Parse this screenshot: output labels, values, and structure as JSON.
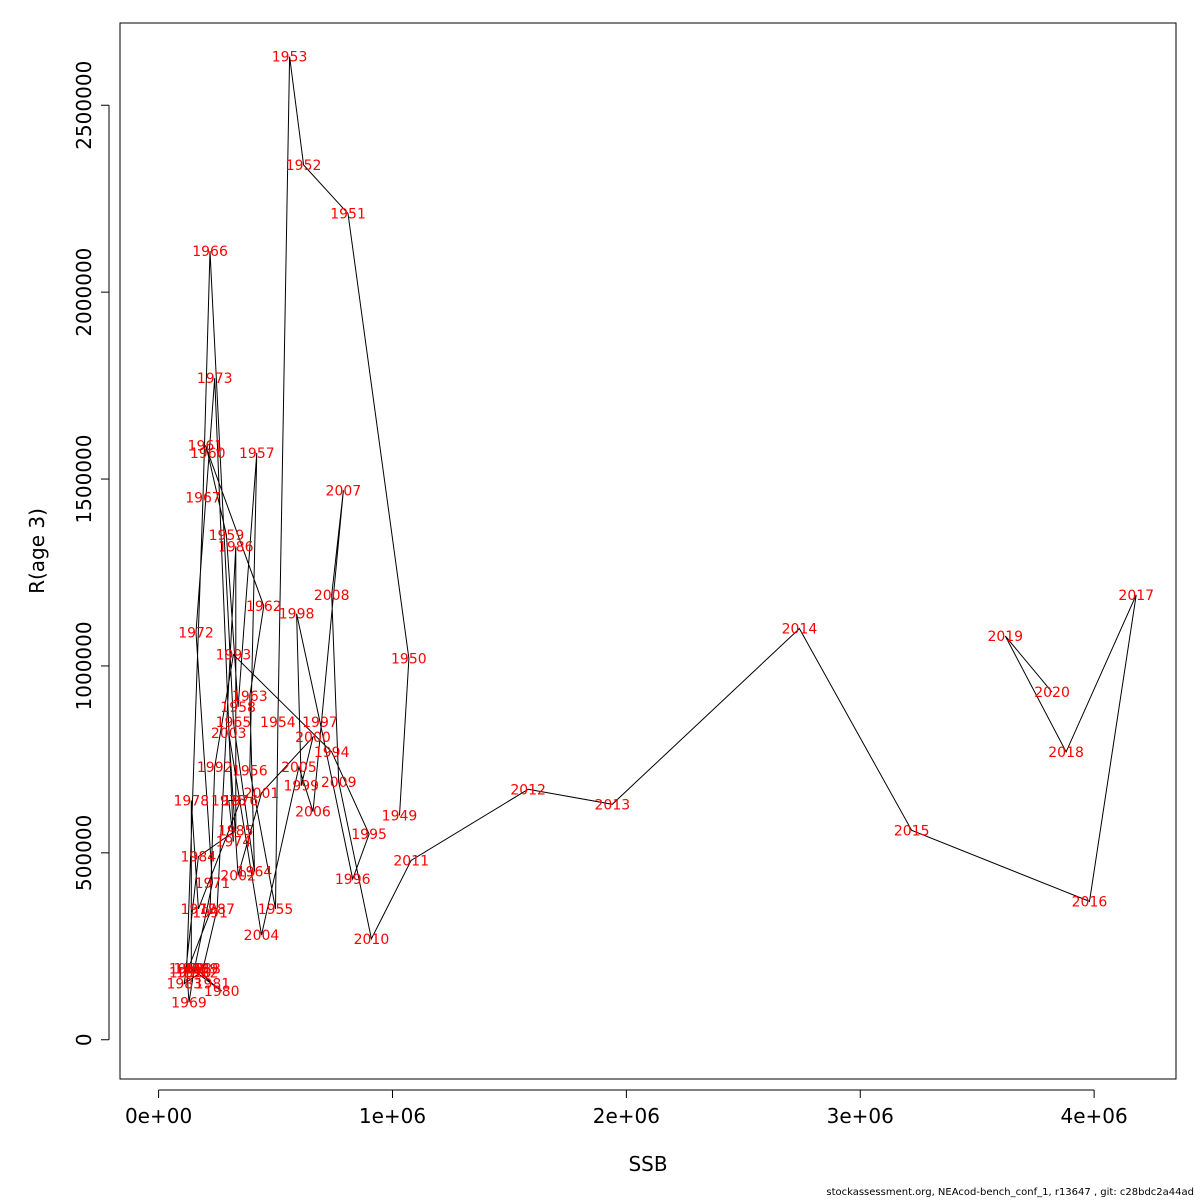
{
  "footer": "stockassessment.org, NEAcod-bench_conf_1, r13647 , git: c28bdc2a44ad",
  "chart_data": {
    "type": "line",
    "xlabel": "SSB",
    "ylabel": "R(age 3)",
    "xlim": [
      -165000,
      4350000
    ],
    "ylim": [
      -105000,
      2720000
    ],
    "x_ticks": [
      0,
      1000000,
      2000000,
      3000000,
      4000000
    ],
    "x_tick_labels": [
      "0e+00",
      "1e+06",
      "2e+06",
      "3e+06",
      "4e+06"
    ],
    "y_ticks": [
      0,
      500000,
      1000000,
      1500000,
      2000000,
      2500000
    ],
    "y_tick_labels": [
      "0",
      "500000",
      "1000000",
      "1500000",
      "2000000",
      "2500000"
    ],
    "grid": false,
    "line_color": "#000000",
    "label_color": "#ff0000",
    "points": [
      {
        "year": "1949",
        "x": 1030000,
        "y": 600000
      },
      {
        "year": "1950",
        "x": 1070000,
        "y": 1020000
      },
      {
        "year": "1951",
        "x": 810000,
        "y": 2210000
      },
      {
        "year": "1952",
        "x": 620000,
        "y": 2340000
      },
      {
        "year": "1953",
        "x": 560000,
        "y": 2630000
      },
      {
        "year": "1954",
        "x": 510000,
        "y": 850000
      },
      {
        "year": "1955",
        "x": 500000,
        "y": 350000
      },
      {
        "year": "1956",
        "x": 390000,
        "y": 720000
      },
      {
        "year": "1957",
        "x": 420000,
        "y": 1570000
      },
      {
        "year": "1958",
        "x": 340000,
        "y": 890000
      },
      {
        "year": "1959",
        "x": 290000,
        "y": 1350000
      },
      {
        "year": "1960",
        "x": 210000,
        "y": 1570000
      },
      {
        "year": "1961",
        "x": 200000,
        "y": 1590000
      },
      {
        "year": "1962",
        "x": 450000,
        "y": 1160000
      },
      {
        "year": "1963",
        "x": 390000,
        "y": 920000
      },
      {
        "year": "1964",
        "x": 410000,
        "y": 450000
      },
      {
        "year": "1965",
        "x": 320000,
        "y": 850000
      },
      {
        "year": "1966",
        "x": 220000,
        "y": 2110000
      },
      {
        "year": "1967",
        "x": 190000,
        "y": 1450000
      },
      {
        "year": "1968",
        "x": 120000,
        "y": 190000
      },
      {
        "year": "1969",
        "x": 130000,
        "y": 100000
      },
      {
        "year": "1970",
        "x": 150000,
        "y": 180000
      },
      {
        "year": "1971",
        "x": 230000,
        "y": 420000
      },
      {
        "year": "1972",
        "x": 160000,
        "y": 1090000
      },
      {
        "year": "1973",
        "x": 240000,
        "y": 1770000
      },
      {
        "year": "1974",
        "x": 320000,
        "y": 530000
      },
      {
        "year": "1975",
        "x": 300000,
        "y": 640000
      },
      {
        "year": "1976",
        "x": 350000,
        "y": 640000
      },
      {
        "year": "1977",
        "x": 170000,
        "y": 350000
      },
      {
        "year": "1978",
        "x": 140000,
        "y": 640000
      },
      {
        "year": "1979",
        "x": 140000,
        "y": 190000
      },
      {
        "year": "1980",
        "x": 270000,
        "y": 130000
      },
      {
        "year": "1981",
        "x": 230000,
        "y": 150000
      },
      {
        "year": "1982",
        "x": 180000,
        "y": 180000
      },
      {
        "year": "1983",
        "x": 110000,
        "y": 150000
      },
      {
        "year": "1984",
        "x": 170000,
        "y": 490000
      },
      {
        "year": "1985",
        "x": 330000,
        "y": 560000
      },
      {
        "year": "1986",
        "x": 330000,
        "y": 1320000
      },
      {
        "year": "1987",
        "x": 250000,
        "y": 350000
      },
      {
        "year": "1988",
        "x": 190000,
        "y": 190000
      },
      {
        "year": "1989",
        "x": 180000,
        "y": 190000
      },
      {
        "year": "1990",
        "x": 120000,
        "y": 180000
      },
      {
        "year": "1991",
        "x": 220000,
        "y": 340000
      },
      {
        "year": "1992",
        "x": 240000,
        "y": 730000
      },
      {
        "year": "1993",
        "x": 320000,
        "y": 1030000
      },
      {
        "year": "1994",
        "x": 740000,
        "y": 770000
      },
      {
        "year": "1995",
        "x": 900000,
        "y": 550000
      },
      {
        "year": "1996",
        "x": 830000,
        "y": 430000
      },
      {
        "year": "1997",
        "x": 690000,
        "y": 850000
      },
      {
        "year": "1998",
        "x": 590000,
        "y": 1140000
      },
      {
        "year": "1999",
        "x": 610000,
        "y": 680000
      },
      {
        "year": "2000",
        "x": 660000,
        "y": 810000
      },
      {
        "year": "2001",
        "x": 440000,
        "y": 660000
      },
      {
        "year": "2002",
        "x": 340000,
        "y": 440000
      },
      {
        "year": "2003",
        "x": 300000,
        "y": 820000
      },
      {
        "year": "2004",
        "x": 440000,
        "y": 280000
      },
      {
        "year": "2005",
        "x": 600000,
        "y": 730000
      },
      {
        "year": "2006",
        "x": 660000,
        "y": 610000
      },
      {
        "year": "2007",
        "x": 790000,
        "y": 1470000
      },
      {
        "year": "2008",
        "x": 740000,
        "y": 1190000
      },
      {
        "year": "2009",
        "x": 770000,
        "y": 690000
      },
      {
        "year": "2010",
        "x": 910000,
        "y": 270000
      },
      {
        "year": "2011",
        "x": 1080000,
        "y": 480000
      },
      {
        "year": "2012",
        "x": 1580000,
        "y": 670000
      },
      {
        "year": "2013",
        "x": 1940000,
        "y": 630000
      },
      {
        "year": "2014",
        "x": 2740000,
        "y": 1100000
      },
      {
        "year": "2015",
        "x": 3220000,
        "y": 560000
      },
      {
        "year": "2016",
        "x": 3980000,
        "y": 370000
      },
      {
        "year": "2017",
        "x": 4180000,
        "y": 1190000
      },
      {
        "year": "2018",
        "x": 3880000,
        "y": 770000
      },
      {
        "year": "2019",
        "x": 3620000,
        "y": 1080000
      },
      {
        "year": "2020",
        "x": 3820000,
        "y": 930000
      }
    ]
  }
}
